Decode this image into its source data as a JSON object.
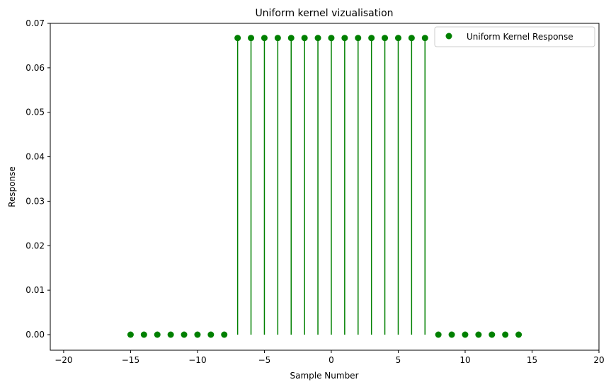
{
  "chart_data": {
    "type": "stem",
    "title": "Uniform kernel vizualisation",
    "xlabel": "Sample Number",
    "ylabel": "Response",
    "xlim": [
      -21,
      20
    ],
    "ylim": [
      -0.0035,
      0.07
    ],
    "xticks": [
      -20,
      -15,
      -10,
      -5,
      0,
      5,
      10,
      15,
      20
    ],
    "xtick_labels": [
      "−20",
      "−15",
      "−10",
      "−5",
      "0",
      "5",
      "10",
      "15",
      "20"
    ],
    "yticks": [
      0.0,
      0.01,
      0.02,
      0.03,
      0.04,
      0.05,
      0.06,
      0.07
    ],
    "ytick_labels": [
      "0.00",
      "0.01",
      "0.02",
      "0.03",
      "0.04",
      "0.05",
      "0.06",
      "0.07"
    ],
    "grid": false,
    "legend": {
      "position": "top-right",
      "entries": [
        "Uniform Kernel Response"
      ]
    },
    "series": [
      {
        "name": "Uniform Kernel Response",
        "color": "#008000",
        "x": [
          -15,
          -14,
          -13,
          -12,
          -11,
          -10,
          -9,
          -8,
          -7,
          -6,
          -5,
          -4,
          -3,
          -2,
          -1,
          0,
          1,
          2,
          3,
          4,
          5,
          6,
          7,
          8,
          9,
          10,
          11,
          12,
          13,
          14
        ],
        "y": [
          0,
          0,
          0,
          0,
          0,
          0,
          0,
          0,
          0.0667,
          0.0667,
          0.0667,
          0.0667,
          0.0667,
          0.0667,
          0.0667,
          0.0667,
          0.0667,
          0.0667,
          0.0667,
          0.0667,
          0.0667,
          0.0667,
          0.0667,
          0,
          0,
          0,
          0,
          0,
          0,
          0
        ]
      }
    ]
  }
}
